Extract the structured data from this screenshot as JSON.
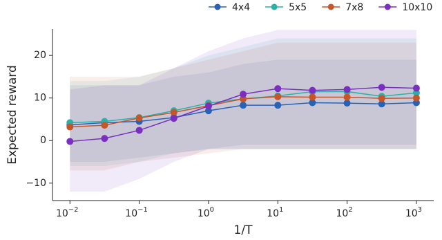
{
  "chart_data": {
    "type": "line",
    "x_label": "1/T",
    "y_label": "Expected reward",
    "x_scale": "log",
    "x": [
      0.01,
      0.0316,
      0.1,
      0.316,
      1,
      3.16,
      10,
      31.6,
      100,
      316,
      1000
    ],
    "xlim": [
      0.0056,
      1778
    ],
    "ylim": [
      -14.1,
      26.2
    ],
    "xticks": [
      {
        "value": 0.01,
        "label": "10−2"
      },
      {
        "value": 0.1,
        "label": "10−1"
      },
      {
        "value": 1,
        "label": "100"
      },
      {
        "value": 10,
        "label": "101"
      },
      {
        "value": 100,
        "label": "102"
      },
      {
        "value": 1000,
        "label": "103"
      }
    ],
    "yticks": [
      {
        "value": -10,
        "label": "−10"
      },
      0,
      10,
      20
    ],
    "legend": "top-right",
    "series": [
      {
        "name": "4x4",
        "color": "#2a62b3",
        "values": [
          3.7,
          4.2,
          4.5,
          5.4,
          7.0,
          8.3,
          8.3,
          8.9,
          8.8,
          8.6,
          8.9
        ],
        "lower": [
          -5,
          -5,
          -4,
          -3,
          -2,
          -1,
          -1,
          -1,
          -1,
          -1,
          -1
        ],
        "upper": [
          13,
          13,
          13,
          15,
          16,
          18,
          19,
          19,
          19,
          19,
          19
        ]
      },
      {
        "name": "5x5",
        "color": "#2bb0a8",
        "values": [
          4.2,
          4.5,
          5.4,
          7.0,
          8.8,
          9.8,
          10.5,
          11.5,
          11.5,
          10.4,
          11.2
        ],
        "lower": [
          -6,
          -6,
          -5,
          -3,
          -2,
          -2,
          -2,
          -2,
          -2,
          -2,
          -2
        ],
        "upper": [
          14,
          14,
          15,
          17,
          20,
          22,
          24,
          24,
          24,
          24,
          24
        ]
      },
      {
        "name": "7x8",
        "color": "#c4562a",
        "values": [
          3.2,
          3.6,
          5.3,
          6.6,
          8.2,
          9.8,
          10.3,
          10.2,
          10.2,
          9.9,
          10.0
        ],
        "lower": [
          -7,
          -7,
          -5,
          -4,
          -3,
          -2,
          -2,
          -2,
          -2,
          -2,
          -2
        ],
        "upper": [
          15,
          15,
          15,
          17,
          19,
          21,
          23,
          23,
          23,
          23,
          23
        ]
      },
      {
        "name": "10x10",
        "color": "#7a2fc0",
        "values": [
          -0.2,
          0.5,
          2.4,
          5.2,
          8.1,
          10.9,
          12.2,
          11.8,
          12.0,
          12.5,
          12.3
        ],
        "lower": [
          -12,
          -12,
          -9,
          -5,
          -2,
          -2,
          -2,
          -2,
          -2,
          -2,
          -2
        ],
        "upper": [
          12,
          13,
          13,
          17,
          21,
          24,
          26,
          26,
          26,
          26,
          26
        ]
      }
    ]
  }
}
